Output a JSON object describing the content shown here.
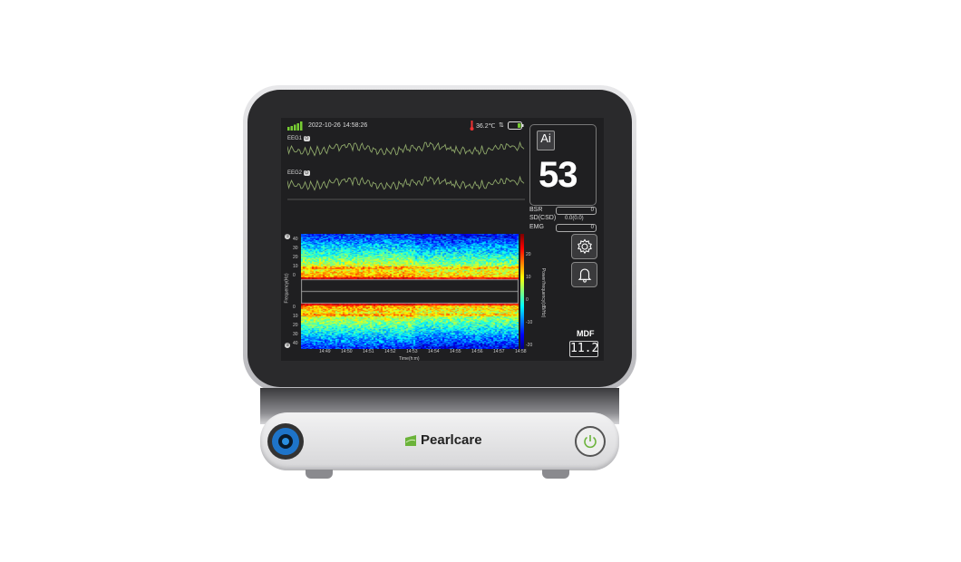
{
  "status": {
    "date": "2022-10-26",
    "time": "14:58:26",
    "temperature": "36.2℃",
    "signal_bars": 5
  },
  "channels": [
    {
      "label": "EEG1",
      "badge": "⊙"
    },
    {
      "label": "EEG2",
      "badge": "⊙"
    }
  ],
  "index": {
    "ai_label": "Ai",
    "value": "53"
  },
  "params": [
    {
      "label": "BSR",
      "value": "0"
    },
    {
      "label": "SD(CSD)",
      "value": "0.0(0.0)"
    },
    {
      "label": "EMG",
      "value": "0"
    }
  ],
  "spectrogram": {
    "y_ticks_top": [
      "40",
      "30",
      "20",
      "10",
      "0"
    ],
    "y_ticks_bottom": [
      "0",
      "10",
      "20",
      "30",
      "40"
    ],
    "x_ticks": [
      "14:49",
      "14:50",
      "14:51",
      "14:52",
      "14:53",
      "14:54",
      "14:55",
      "14:56",
      "14:57",
      "14:58"
    ],
    "x_label": "Time(h:m)",
    "y_label": "Frequency(Hz)",
    "colorbar_label": "Power/frequency(dB/Hz)",
    "colorbar_ticks": [
      "20",
      "10",
      "0",
      "-10",
      "-20"
    ]
  },
  "mdf": {
    "label": "MDF",
    "value": "11.2"
  },
  "brand": {
    "name": "Pearlcare",
    "color": "#6bb33a"
  },
  "colors": {
    "wave": "#8fa86a",
    "accent_blue": "#1e74c9",
    "power_green": "#6bb33a"
  }
}
